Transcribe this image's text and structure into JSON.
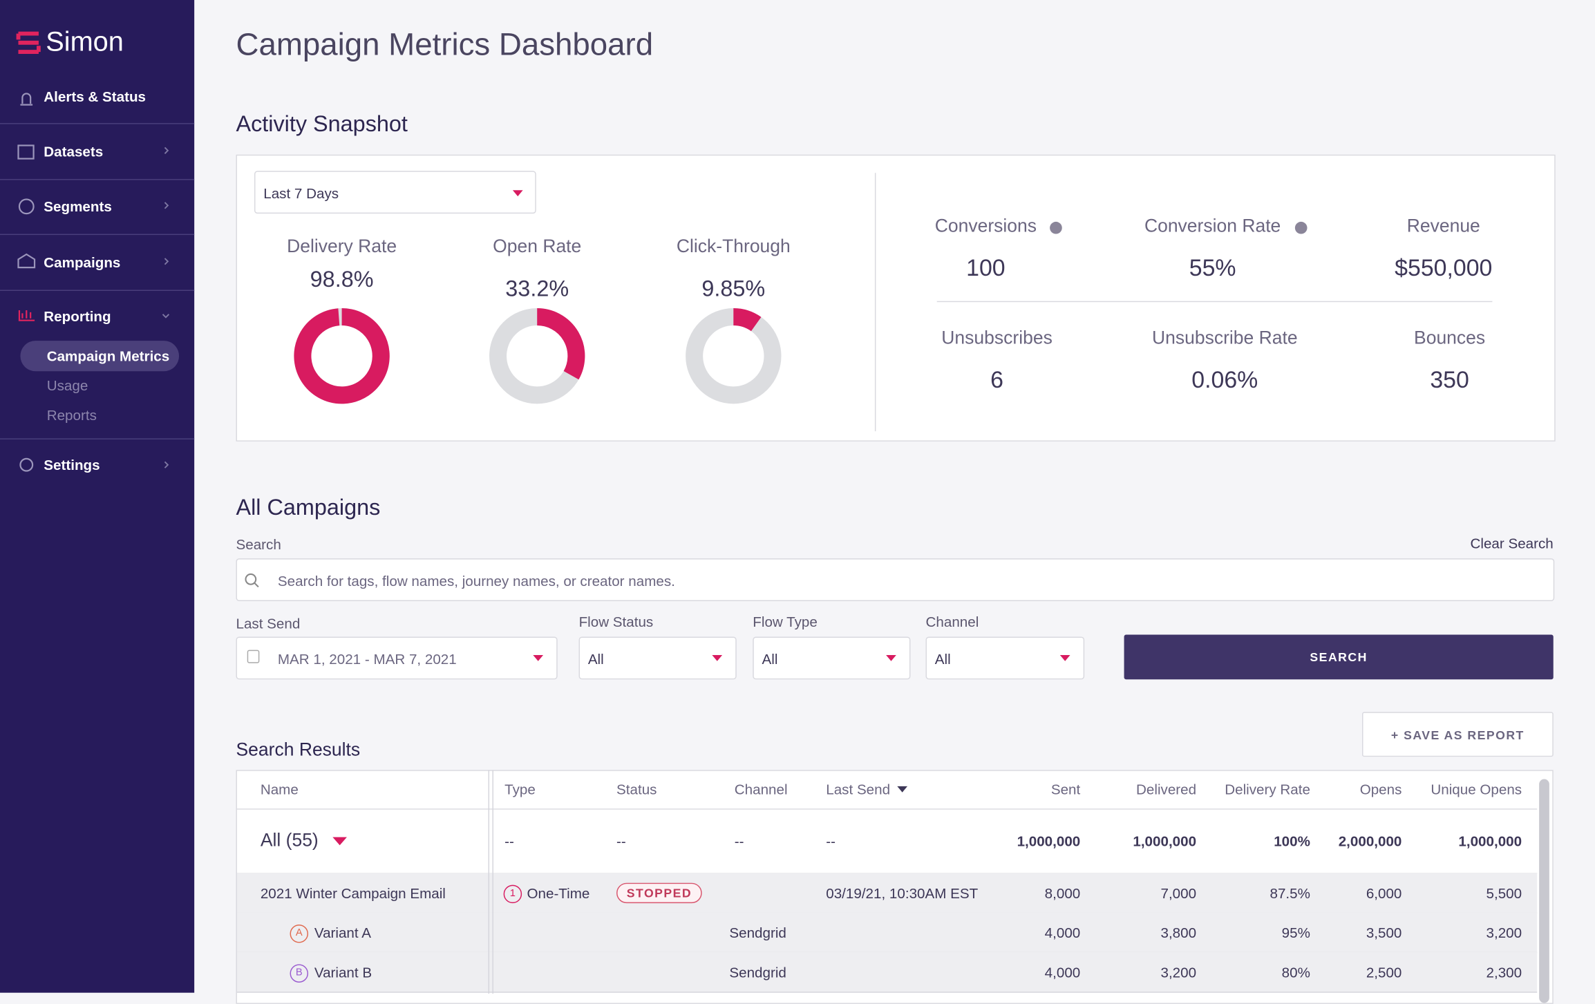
{
  "sidebar": {
    "brand": "Simon",
    "nav": [
      {
        "label": "Alerts & Status"
      },
      {
        "label": "Datasets"
      },
      {
        "label": "Segments"
      },
      {
        "label": "Campaigns"
      },
      {
        "label": "Reporting",
        "children": [
          "Campaign Metrics",
          "Usage",
          "Reports"
        ]
      },
      {
        "label": "Settings"
      }
    ]
  },
  "header": {
    "title": "Campaign Metrics Dashboard"
  },
  "snapshot": {
    "title": "Activity Snapshot",
    "period": "Last 7 Days",
    "donuts": [
      {
        "label": "Delivery Rate",
        "value": 98.8,
        "value_label": "98.8%"
      },
      {
        "label": "Open Rate",
        "value": 33.2,
        "value_label": "33.2%"
      },
      {
        "label": "Click-Through",
        "value": 9.85,
        "value_label": "9.85%"
      }
    ],
    "metrics": [
      {
        "label": "Conversions",
        "value": "100"
      },
      {
        "label": "Conversion Rate",
        "value": "55%"
      },
      {
        "label": "Revenue",
        "value": "$550,000"
      },
      {
        "label": "Unsubscribes",
        "value": "6"
      },
      {
        "label": "Unsubscribe Rate",
        "value": "0.06%"
      },
      {
        "label": "Bounces",
        "value": "350"
      }
    ]
  },
  "campaigns": {
    "title": "All Campaigns",
    "search_label": "Search",
    "clear": "Clear Search",
    "search_placeholder": "Search for tags, flow names, journey names, or creator names.",
    "filters": [
      {
        "label": "Last Send",
        "value": "MAR 1, 2021 - MAR 7, 2021"
      },
      {
        "label": "Flow Status",
        "value": "All"
      },
      {
        "label": "Flow Type",
        "value": "All"
      },
      {
        "label": "Channel",
        "value": "All"
      }
    ],
    "search_button": "SEARCH",
    "save_button": "+ SAVE AS REPORT",
    "results_title": "Search Results",
    "table": {
      "columns": [
        "Name",
        "Type",
        "Status",
        "Channel",
        "Last Send",
        "Sent",
        "Delivered",
        "Delivery Rate",
        "Opens",
        "Unique Opens"
      ],
      "rows": [
        {
          "cells": [
            "All (55)",
            "--",
            "--",
            "--",
            "--",
            "1,000,000",
            "1,000,000",
            "100%",
            "2,000,000",
            "1,000,000"
          ]
        },
        {
          "type_icon": "1",
          "cells": [
            "2021 Winter Campaign Email",
            "One-Time",
            "STOPPED",
            null,
            "03/19/21, 10:30AM EST",
            "8,000",
            "7,000",
            "87.5%",
            "6,000",
            "5,500"
          ]
        },
        {
          "badge": "A",
          "cells": [
            "Variant A",
            null,
            null,
            "Sendgrid",
            null,
            "4,000",
            "3,800",
            "95%",
            "3,500",
            "3,200"
          ]
        },
        {
          "badge": "B",
          "cells": [
            "Variant B",
            null,
            null,
            "Sendgrid",
            null,
            "4,000",
            "3,200",
            "80%",
            "2,500",
            "2,300"
          ]
        }
      ]
    }
  }
}
